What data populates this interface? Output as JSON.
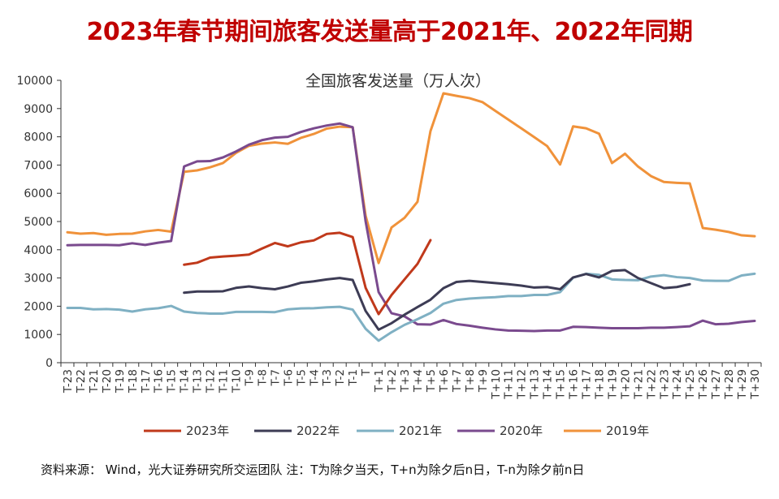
{
  "headline": "2023年春节期间旅客发送量高于2021年、2022年同期",
  "source_note": "资料来源： Wind，光大证券研究所交运团队 注：T为除夕当天，T+n为除夕后n日，T-n为除夕前n日",
  "chart_data": {
    "type": "line",
    "title": "全国旅客发送量（万人次）",
    "xlabel": "",
    "ylabel": "",
    "ylim": [
      0,
      10000
    ],
    "yticks": [
      0,
      1000,
      2000,
      3000,
      4000,
      5000,
      6000,
      7000,
      8000,
      9000,
      10000
    ],
    "grid": false,
    "legend_position": "bottom",
    "categories": [
      "T-23",
      "T-22",
      "T-21",
      "T-20",
      "T-19",
      "T-18",
      "T-17",
      "T-16",
      "T-15",
      "T-14",
      "T-13",
      "T-12",
      "T-11",
      "T-10",
      "T-9",
      "T-8",
      "T-7",
      "T-6",
      "T-5",
      "T-4",
      "T-3",
      "T-2",
      "T-1",
      "T",
      "T+1",
      "T+2",
      "T+3",
      "T+4",
      "T+5",
      "T+6",
      "T+7",
      "T+8",
      "T+9",
      "T+10",
      "T+11",
      "T+12",
      "T+13",
      "T+14",
      "T+15",
      "T+16",
      "T+17",
      "T+18",
      "T+19",
      "T+20",
      "T+21",
      "T+22",
      "T+23",
      "T+24",
      "T+25",
      "T+26",
      "T+27",
      "T+28",
      "T+29",
      "T+30"
    ],
    "series": [
      {
        "name": "2023年",
        "color": "#c0391b",
        "values": [
          null,
          null,
          null,
          null,
          null,
          null,
          null,
          null,
          null,
          3470,
          3540,
          3720,
          3760,
          3790,
          3830,
          4040,
          4240,
          4120,
          4260,
          4330,
          4560,
          4600,
          4450,
          2650,
          1720,
          2400,
          2950,
          3500,
          4340,
          null,
          null,
          null,
          null,
          null,
          null,
          null,
          null,
          null,
          null,
          null,
          null,
          null,
          null,
          null,
          null,
          null,
          null,
          null,
          null,
          null,
          null,
          null,
          null,
          null
        ]
      },
      {
        "name": "2022年",
        "color": "#3d3c55",
        "values": [
          null,
          null,
          null,
          null,
          null,
          null,
          null,
          null,
          null,
          2480,
          2520,
          2520,
          2530,
          2650,
          2700,
          2640,
          2600,
          2700,
          2830,
          2880,
          2950,
          3000,
          2930,
          1830,
          1170,
          1400,
          1700,
          1970,
          2230,
          2640,
          2860,
          2900,
          2860,
          2820,
          2780,
          2730,
          2660,
          2680,
          2600,
          3020,
          3140,
          3020,
          3250,
          3280,
          3000,
          2820,
          2640,
          2680,
          2780,
          null,
          null,
          null,
          null,
          null
        ]
      },
      {
        "name": "2021年",
        "color": "#7fb0c3",
        "values": [
          1940,
          1940,
          1890,
          1900,
          1880,
          1810,
          1890,
          1930,
          2010,
          1810,
          1760,
          1740,
          1740,
          1800,
          1800,
          1800,
          1790,
          1890,
          1920,
          1930,
          1960,
          1980,
          1880,
          1200,
          780,
          1080,
          1340,
          1540,
          1760,
          2090,
          2220,
          2270,
          2300,
          2320,
          2360,
          2360,
          2400,
          2400,
          2500,
          3010,
          3150,
          3110,
          2950,
          2930,
          2920,
          3050,
          3100,
          3030,
          3000,
          2910,
          2900,
          2900,
          3090,
          3150
        ]
      },
      {
        "name": "2020年",
        "color": "#7a4a8e",
        "values": [
          4160,
          4170,
          4170,
          4170,
          4160,
          4230,
          4170,
          4250,
          4310,
          6950,
          7130,
          7140,
          7270,
          7480,
          7720,
          7880,
          7970,
          8000,
          8170,
          8300,
          8400,
          8470,
          8340,
          5000,
          2500,
          1750,
          1640,
          1360,
          1350,
          1510,
          1370,
          1310,
          1240,
          1180,
          1140,
          1130,
          1120,
          1140,
          1140,
          1270,
          1260,
          1240,
          1220,
          1220,
          1220,
          1240,
          1240,
          1260,
          1290,
          1490,
          1360,
          1380,
          1440,
          1480
        ]
      },
      {
        "name": "2019年",
        "color": "#f0923a",
        "values": [
          4620,
          4570,
          4590,
          4530,
          4560,
          4570,
          4650,
          4700,
          4640,
          6760,
          6810,
          6920,
          7070,
          7430,
          7680,
          7760,
          7800,
          7750,
          7960,
          8100,
          8290,
          8360,
          8340,
          5200,
          3530,
          4790,
          5130,
          5700,
          8200,
          9540,
          9450,
          9370,
          9230,
          8920,
          8610,
          8300,
          7990,
          7670,
          7020,
          8370,
          8300,
          8110,
          7070,
          7400,
          6950,
          6610,
          6400,
          6370,
          6350,
          4770,
          4710,
          4630,
          4510,
          4480
        ]
      }
    ]
  }
}
